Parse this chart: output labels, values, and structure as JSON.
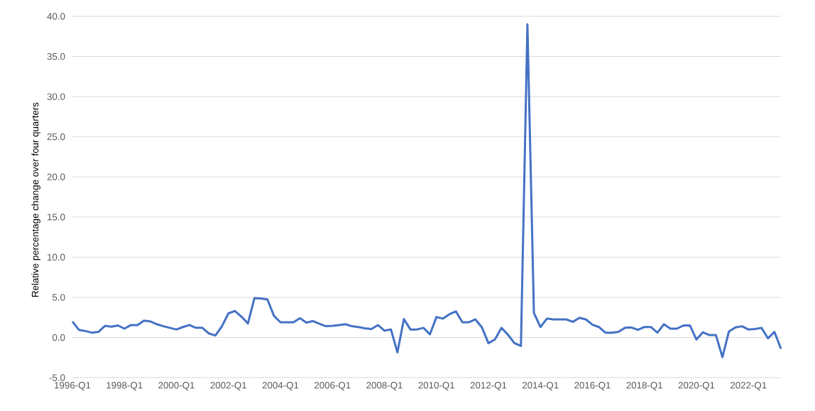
{
  "chart_data": {
    "type": "line",
    "ylabel": "Relative percentage change over four quarters",
    "categories": [
      "1996-Q1",
      null,
      null,
      null,
      null,
      null,
      null,
      null,
      "1998-Q1",
      null,
      null,
      null,
      null,
      null,
      null,
      null,
      "2000-Q1",
      null,
      null,
      null,
      null,
      null,
      null,
      null,
      "2002-Q1",
      null,
      null,
      null,
      null,
      null,
      null,
      null,
      "2004-Q1",
      null,
      null,
      null,
      null,
      null,
      null,
      null,
      "2006-Q1",
      null,
      null,
      null,
      null,
      null,
      null,
      null,
      "2008-Q1",
      null,
      null,
      null,
      null,
      null,
      null,
      null,
      "2010-Q1",
      null,
      null,
      null,
      null,
      null,
      null,
      null,
      "2012-Q1",
      null,
      null,
      null,
      null,
      null,
      null,
      null,
      "2014-Q1",
      null,
      null,
      null,
      null,
      null,
      null,
      null,
      "2016-Q1",
      null,
      null,
      null,
      null,
      null,
      null,
      null,
      "2018-Q1",
      null,
      null,
      null,
      null,
      null,
      null,
      null,
      "2020-Q1",
      null,
      null,
      null,
      null,
      null,
      null,
      null,
      "2022-Q1",
      null,
      null,
      null,
      null,
      null
    ],
    "series": [
      {
        "color": "#4472c4",
        "values": [
          2.0,
          0.95,
          0.8,
          0.6,
          0.7,
          1.45,
          1.35,
          1.5,
          1.1,
          1.55,
          1.55,
          2.1,
          2.0,
          1.65,
          1.4,
          1.2,
          1.0,
          1.3,
          1.55,
          1.2,
          1.2,
          0.5,
          0.25,
          1.4,
          3.0,
          3.3,
          2.6,
          1.75,
          4.9,
          4.85,
          4.75,
          2.7,
          1.9,
          1.9,
          1.9,
          2.4,
          1.85,
          2.05,
          1.7,
          1.4,
          1.45,
          1.55,
          1.65,
          1.4,
          1.3,
          1.15,
          1.05,
          1.55,
          0.85,
          1.0,
          -1.85,
          2.3,
          1.0,
          1.0,
          1.2,
          0.4,
          2.55,
          2.35,
          2.9,
          3.25,
          1.9,
          1.9,
          2.25,
          1.25,
          -0.7,
          -0.25,
          1.2,
          0.35,
          -0.7,
          -1.05,
          39.0,
          3.05,
          1.3,
          2.35,
          2.25,
          2.25,
          2.25,
          1.95,
          2.45,
          2.25,
          1.6,
          1.3,
          0.6,
          0.6,
          0.7,
          1.2,
          1.25,
          0.95,
          1.3,
          1.3,
          0.6,
          1.65,
          1.1,
          1.1,
          1.5,
          1.5,
          -0.25,
          0.65,
          0.3,
          0.3,
          -2.45,
          0.75,
          1.25,
          1.4,
          1.0,
          1.05,
          1.2,
          -0.1,
          0.7,
          -1.4
        ]
      }
    ],
    "ylim": [
      -5,
      40
    ],
    "yticks": [
      {
        "value": -5,
        "label": "-5.0"
      },
      {
        "value": 0,
        "label": "0.0"
      },
      {
        "value": 5,
        "label": "5.0"
      },
      {
        "value": 10,
        "label": "10.0"
      },
      {
        "value": 15,
        "label": "15.0"
      },
      {
        "value": 20,
        "label": "20.0"
      },
      {
        "value": 25,
        "label": "25.0"
      },
      {
        "value": 30,
        "label": "30.0"
      },
      {
        "value": 35,
        "label": "35.0"
      },
      {
        "value": 40,
        "label": "40.0"
      }
    ],
    "grid": "y"
  }
}
